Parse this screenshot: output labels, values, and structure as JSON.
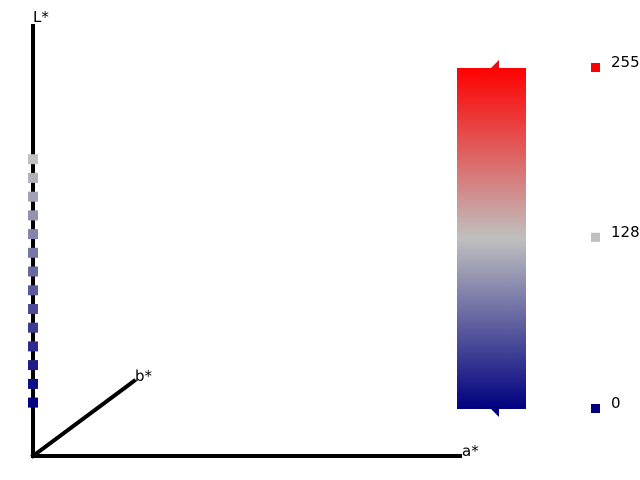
{
  "chart_data": {
    "type": "scatter",
    "title": "",
    "axes": {
      "x_label": "a*",
      "y_label": "L*",
      "z_label": "b*"
    },
    "colorbar": {
      "tick_labels": [
        "255",
        "128",
        "0"
      ],
      "tick_values": [
        255,
        128,
        0
      ],
      "tick_colors": [
        "#ff0000",
        "#c0c0c0",
        "#000080"
      ],
      "gradient": [
        "#000080",
        "#c0c0c0",
        "#ff0000"
      ]
    },
    "series": [
      {
        "points": [
          {
            "a": 0.0,
            "b": 0.0,
            "L": 76.1
          },
          {
            "a": 0.0,
            "b": 0.0,
            "L": 71.3
          },
          {
            "a": 0.0,
            "b": 0.0,
            "L": 66.5
          },
          {
            "a": 0.0,
            "b": 0.0,
            "L": 61.7
          },
          {
            "a": 0.0,
            "b": 0.0,
            "L": 56.9
          },
          {
            "a": 0.0,
            "b": 0.0,
            "L": 52.1
          },
          {
            "a": 0.0,
            "b": 0.0,
            "L": 47.3
          },
          {
            "a": 0.0,
            "b": 0.0,
            "L": 42.5
          },
          {
            "a": 0.0,
            "b": 0.0,
            "L": 37.7
          },
          {
            "a": 0.0,
            "b": 0.0,
            "L": 32.9
          },
          {
            "a": 0.0,
            "b": 0.0,
            "L": 28.1
          },
          {
            "a": 0.0,
            "b": 0.0,
            "L": 23.3
          },
          {
            "a": 0.0,
            "b": 0.0,
            "L": 18.5
          },
          {
            "a": 0.0,
            "b": 0.0,
            "L": 13.7
          }
        ],
        "color_from": "#c0c0c0",
        "color_to": "#000080"
      }
    ]
  }
}
